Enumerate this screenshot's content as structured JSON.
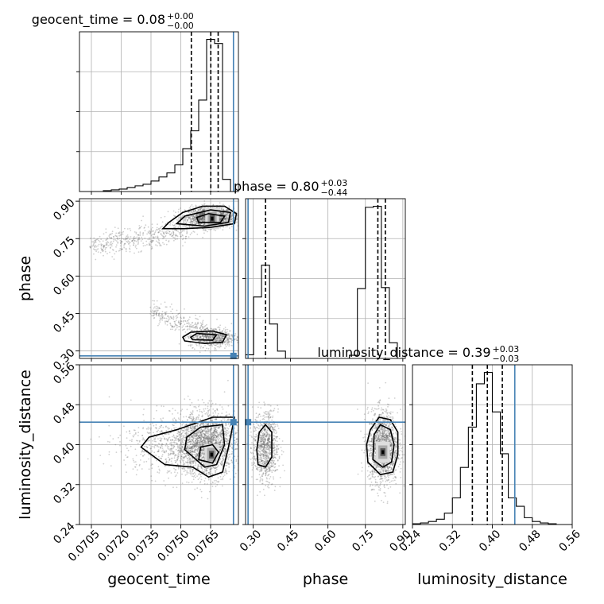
{
  "chart_data": {
    "type": "corner",
    "parameters": [
      "geocent_time",
      "phase",
      "luminosity_distance"
    ],
    "axis_labels": {
      "geocent_time": "geocent_time",
      "phase": "phase",
      "luminosity_distance": "luminosity_distance"
    },
    "ranges": {
      "geocent_time": [
        0.0699,
        0.0779
      ],
      "phase": [
        0.27,
        0.91
      ],
      "luminosity_distance": [
        0.24,
        0.56
      ]
    },
    "ticks": {
      "geocent_time": {
        "values": [
          0.0705,
          0.072,
          0.0735,
          0.075,
          0.0765
        ],
        "labels": [
          "0.0705",
          "0.0720",
          "0.0735",
          "0.0750",
          "0.0765"
        ]
      },
      "phase": {
        "values": [
          0.3,
          0.45,
          0.6,
          0.75,
          0.9
        ],
        "labels": [
          "0.30",
          "0.45",
          "0.60",
          "0.75",
          "0.90"
        ]
      },
      "luminosity_distance": {
        "values": [
          0.24,
          0.32,
          0.4,
          0.48,
          0.56
        ],
        "labels": [
          "0.24",
          "0.32",
          "0.40",
          "0.48",
          "0.56"
        ]
      }
    },
    "truths": {
      "geocent_time": 0.07765,
      "phase": 0.28,
      "luminosity_distance": 0.445
    },
    "titles": {
      "geocent_time": {
        "text": "geocent_time = 0.08",
        "plus": "+0.00",
        "minus": "−0.00"
      },
      "phase": {
        "text": "phase = 0.80",
        "plus": "+0.03",
        "minus": "−0.44"
      },
      "luminosity_distance": {
        "text": "luminosity_distance = 0.39",
        "plus": "+0.03",
        "minus": "−0.03"
      }
    },
    "quantiles": {
      "geocent_time": [
        0.07553,
        0.07651,
        0.07688
      ],
      "phase": [
        0.35,
        0.8,
        0.83
      ],
      "luminosity_distance": [
        0.36,
        0.39,
        0.42
      ]
    },
    "histograms": {
      "geocent_time": {
        "bin_edges": [
          0.0699,
          0.0703,
          0.0707,
          0.0711,
          0.0715,
          0.0719,
          0.0723,
          0.0727,
          0.0731,
          0.0735,
          0.0739,
          0.0743,
          0.0747,
          0.0751,
          0.0755,
          0.0759,
          0.0763,
          0.0767,
          0.0771,
          0.0775,
          0.0779
        ],
        "counts": [
          0,
          0,
          0,
          1,
          2,
          3,
          5,
          7,
          9,
          13,
          18,
          23,
          33,
          53,
          75,
          113,
          188,
          183,
          15,
          0
        ]
      },
      "phase": {
        "bin_edges": [
          0.27,
          0.302,
          0.334,
          0.366,
          0.398,
          0.43,
          0.462,
          0.494,
          0.526,
          0.558,
          0.59,
          0.622,
          0.654,
          0.686,
          0.718,
          0.75,
          0.782,
          0.814,
          0.846,
          0.878,
          0.91
        ],
        "counts": [
          7,
          118,
          179,
          66,
          14,
          0,
          0,
          0,
          0,
          0,
          0,
          0,
          0,
          6,
          134,
          290,
          292,
          136,
          30,
          0
        ]
      },
      "luminosity_distance": {
        "bin_edges": [
          0.24,
          0.256,
          0.272,
          0.288,
          0.304,
          0.32,
          0.336,
          0.352,
          0.368,
          0.384,
          0.4,
          0.416,
          0.432,
          0.448,
          0.464,
          0.48,
          0.496,
          0.512,
          0.528,
          0.544,
          0.56
        ],
        "counts": [
          1,
          2,
          4,
          7,
          15,
          35,
          75,
          128,
          185,
          200,
          148,
          93,
          35,
          24,
          9,
          4,
          2,
          1,
          0,
          0
        ]
      }
    },
    "samples_2d": {
      "phase_vs_geocent_time": {
        "clusters": [
          {
            "mean": [
              0.07645,
              0.835
            ],
            "sd": [
              0.0006,
              0.02
            ],
            "n": 1700
          },
          {
            "mean": [
              0.0766,
              0.355
            ],
            "sd": [
              0.0006,
              0.02
            ],
            "n": 650
          }
        ],
        "tails": [
          {
            "from": [
              0.0705,
              0.72
            ],
            "to": [
              0.0755,
              0.79
            ],
            "n": 450,
            "spread": 0.025
          },
          {
            "from": [
              0.0735,
              0.46
            ],
            "to": [
              0.0762,
              0.38
            ],
            "n": 250,
            "spread": 0.02
          }
        ],
        "density_peak": [
          0.07658,
          0.83
        ]
      },
      "luminosity_distance_vs_geocent_time": {
        "clusters": [
          {
            "mean": [
              0.0763,
              0.4
            ],
            "sd": [
              0.00075,
              0.032
            ],
            "n": 2000
          },
          {
            "mean": [
              0.0747,
              0.4
            ],
            "sd": [
              0.0014,
              0.03
            ],
            "n": 700
          }
        ],
        "tails": [],
        "density_peak": [
          0.07655,
          0.38
        ]
      },
      "luminosity_distance_vs_phase": {
        "clusters": [
          {
            "mean": [
              0.35,
              0.395
            ],
            "sd": [
              0.025,
              0.035
            ],
            "n": 900
          },
          {
            "mean": [
              0.82,
              0.395
            ],
            "sd": [
              0.03,
              0.036
            ],
            "n": 1500
          }
        ],
        "tails": [],
        "density_peak": [
          0.82,
          0.385
        ]
      }
    },
    "contours": {
      "phase_vs_geocent_time": [
        [
          [
            0.0748,
            0.81
          ],
          [
            0.0762,
            0.8
          ],
          [
            0.0774,
            0.815
          ],
          [
            0.0775,
            0.855
          ],
          [
            0.0765,
            0.865
          ],
          [
            0.0752,
            0.84
          ],
          [
            0.0748,
            0.81
          ]
        ],
        [
          [
            0.0759,
            0.815
          ],
          [
            0.077,
            0.815
          ],
          [
            0.0772,
            0.84
          ],
          [
            0.0764,
            0.85
          ],
          [
            0.0758,
            0.835
          ],
          [
            0.0759,
            0.815
          ]
        ],
        [
          [
            0.0741,
            0.79
          ],
          [
            0.0752,
            0.79
          ],
          [
            0.0765,
            0.795
          ],
          [
            0.0777,
            0.81
          ],
          [
            0.0778,
            0.85
          ],
          [
            0.0772,
            0.88
          ],
          [
            0.0761,
            0.88
          ],
          [
            0.0751,
            0.855
          ],
          [
            0.0744,
            0.815
          ],
          [
            0.0741,
            0.79
          ]
        ],
        [
          [
            0.0752,
            0.34
          ],
          [
            0.0762,
            0.33
          ],
          [
            0.0771,
            0.335
          ],
          [
            0.0773,
            0.365
          ],
          [
            0.0766,
            0.38
          ],
          [
            0.0755,
            0.375
          ],
          [
            0.0751,
            0.355
          ],
          [
            0.0752,
            0.34
          ]
        ],
        [
          [
            0.0756,
            0.345
          ],
          [
            0.0766,
            0.343
          ],
          [
            0.0768,
            0.365
          ],
          [
            0.0758,
            0.37
          ],
          [
            0.0755,
            0.355
          ],
          [
            0.0756,
            0.345
          ]
        ]
      ],
      "luminosity_distance_vs_geocent_time": [
        [
          [
            0.073,
            0.395
          ],
          [
            0.0742,
            0.36
          ],
          [
            0.0756,
            0.355
          ],
          [
            0.0764,
            0.335
          ],
          [
            0.0771,
            0.345
          ],
          [
            0.0774,
            0.395
          ],
          [
            0.0777,
            0.455
          ],
          [
            0.0766,
            0.455
          ],
          [
            0.0748,
            0.43
          ],
          [
            0.0734,
            0.415
          ],
          [
            0.073,
            0.395
          ]
        ],
        [
          [
            0.0752,
            0.39
          ],
          [
            0.0762,
            0.355
          ],
          [
            0.0768,
            0.36
          ],
          [
            0.0772,
            0.4
          ],
          [
            0.0771,
            0.44
          ],
          [
            0.076,
            0.435
          ],
          [
            0.0753,
            0.415
          ],
          [
            0.0752,
            0.39
          ]
        ],
        [
          [
            0.0759,
            0.37
          ],
          [
            0.0766,
            0.363
          ],
          [
            0.0769,
            0.385
          ],
          [
            0.0766,
            0.4
          ],
          [
            0.076,
            0.395
          ],
          [
            0.0759,
            0.37
          ]
        ]
      ],
      "luminosity_distance_vs_phase": [
        [
          [
            0.32,
            0.36
          ],
          [
            0.35,
            0.355
          ],
          [
            0.375,
            0.375
          ],
          [
            0.375,
            0.425
          ],
          [
            0.35,
            0.44
          ],
          [
            0.325,
            0.425
          ],
          [
            0.315,
            0.39
          ],
          [
            0.32,
            0.36
          ]
        ],
        [
          [
            0.76,
            0.365
          ],
          [
            0.81,
            0.34
          ],
          [
            0.86,
            0.345
          ],
          [
            0.88,
            0.38
          ],
          [
            0.88,
            0.425
          ],
          [
            0.85,
            0.45
          ],
          [
            0.805,
            0.455
          ],
          [
            0.77,
            0.43
          ],
          [
            0.755,
            0.4
          ],
          [
            0.76,
            0.365
          ]
        ],
        [
          [
            0.78,
            0.37
          ],
          [
            0.82,
            0.355
          ],
          [
            0.855,
            0.365
          ],
          [
            0.865,
            0.4
          ],
          [
            0.85,
            0.43
          ],
          [
            0.81,
            0.44
          ],
          [
            0.785,
            0.42
          ],
          [
            0.78,
            0.37
          ]
        ]
      ]
    }
  }
}
